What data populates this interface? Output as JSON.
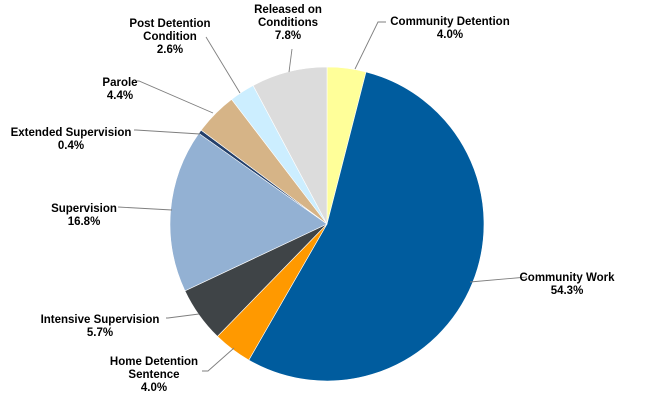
{
  "chart_data": {
    "type": "pie",
    "title": "",
    "start_angle_deg": 0,
    "direction": "clockwise",
    "slices": [
      {
        "key": "community-detention",
        "label": "Community Detention",
        "value": 4.0,
        "value_label": "4.0%",
        "color": "#FFFF99"
      },
      {
        "key": "community-work",
        "label": "Community Work",
        "value": 54.3,
        "value_label": "54.3%",
        "color": "#005C9E"
      },
      {
        "key": "home-detention-sentence",
        "label": "Home Detention Sentence",
        "value": 4.0,
        "value_label": "4.0%",
        "color": "#FF9900"
      },
      {
        "key": "intensive-supervision",
        "label": "Intensive Supervision",
        "value": 5.7,
        "value_label": "5.7%",
        "color": "#3F4447"
      },
      {
        "key": "supervision",
        "label": "Supervision",
        "value": 16.8,
        "value_label": "16.8%",
        "color": "#93B1D3"
      },
      {
        "key": "extended-supervision",
        "label": "Extended Supervision",
        "value": 0.4,
        "value_label": "0.4%",
        "color": "#24406B"
      },
      {
        "key": "parole",
        "label": "Parole",
        "value": 4.4,
        "value_label": "4.4%",
        "color": "#D6B487"
      },
      {
        "key": "post-detention-condition",
        "label": "Post Detention Condition",
        "value": 2.6,
        "value_label": "2.6%",
        "color": "#CCEEFF"
      },
      {
        "key": "released-on-conditions",
        "label": "Released on Conditions",
        "value": 7.8,
        "value_label": "7.8%",
        "color": "#DCDCDC"
      }
    ],
    "legend": "none"
  }
}
